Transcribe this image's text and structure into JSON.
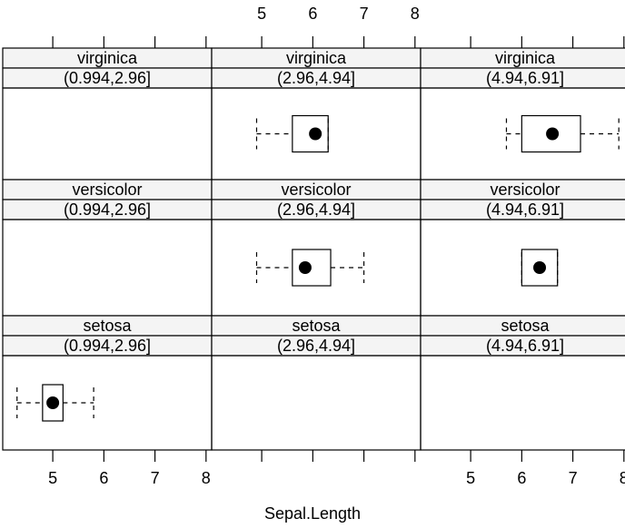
{
  "chart_data": {
    "type": "box",
    "x_label": "Sepal.Length",
    "xlim": [
      4.02,
      8.11
    ],
    "xticks": [
      5,
      6,
      7,
      8
    ],
    "panels": [
      [
        {
          "species": "virginica",
          "interval": "(0.994,2.96]"
        },
        {
          "species": "virginica",
          "interval": "(2.96,4.94]",
          "min": 4.9,
          "q1": 5.6,
          "median": 6.05,
          "q3": 6.3,
          "max": 6.3
        },
        {
          "species": "virginica",
          "interval": "(4.94,6.91]",
          "min": 5.7,
          "q1": 6.0,
          "median": 6.6,
          "q3": 7.15,
          "max": 7.9
        }
      ],
      [
        {
          "species": "versicolor",
          "interval": "(0.994,2.96]"
        },
        {
          "species": "versicolor",
          "interval": "(2.96,4.94]",
          "min": 4.9,
          "q1": 5.6,
          "median": 5.85,
          "q3": 6.35,
          "max": 7.0
        },
        {
          "species": "versicolor",
          "interval": "(4.94,6.91]",
          "min": 6.0,
          "q1": 6.0,
          "median": 6.35,
          "q3": 6.7,
          "max": 6.7
        }
      ],
      [
        {
          "species": "setosa",
          "interval": "(0.994,2.96]",
          "min": 4.3,
          "q1": 4.8,
          "median": 5.0,
          "q3": 5.2,
          "max": 5.8
        },
        {
          "species": "setosa",
          "interval": "(2.96,4.94]"
        },
        {
          "species": "setosa",
          "interval": "(4.94,6.91]"
        }
      ]
    ]
  }
}
